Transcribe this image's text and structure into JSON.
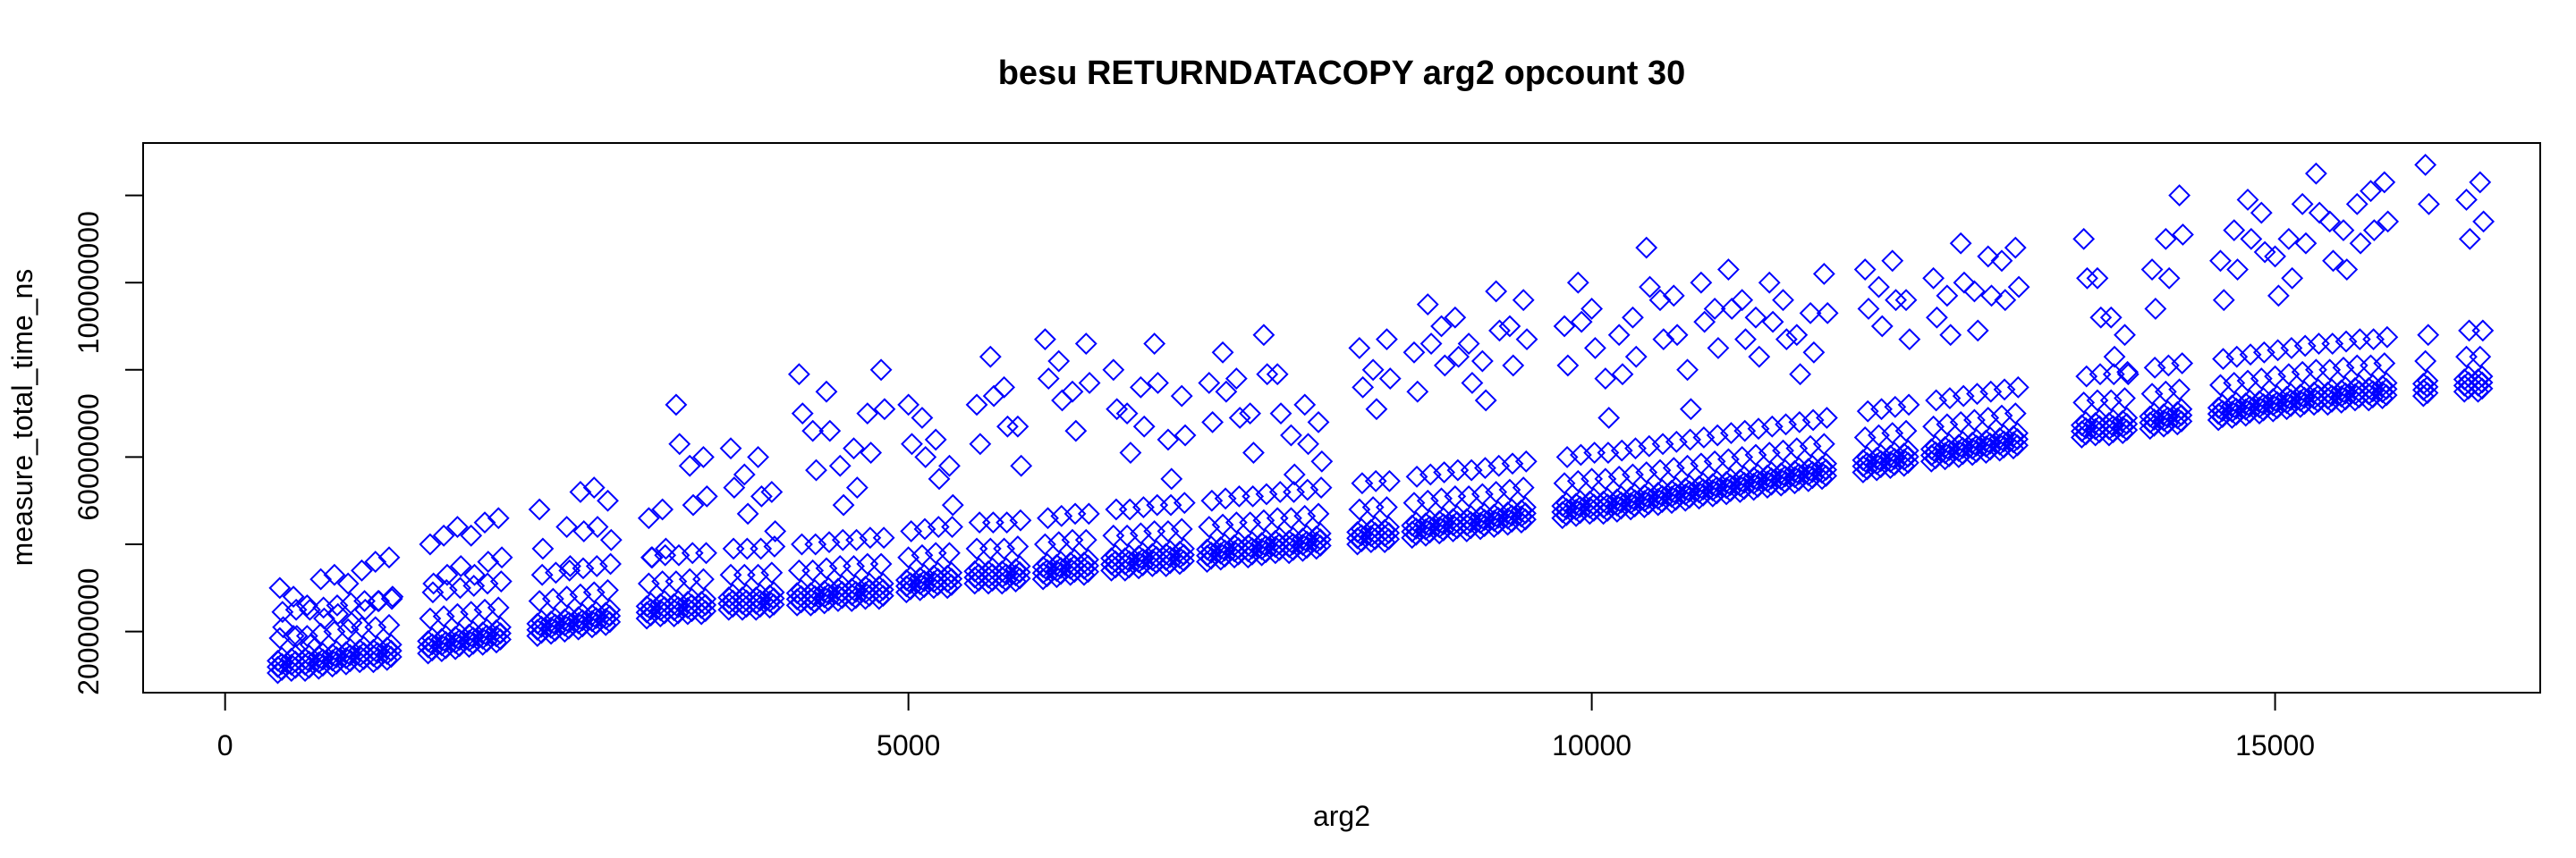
{
  "chart_data": {
    "type": "scatter",
    "title": "besu RETURNDATACOPY arg2 opcount 30",
    "xlabel": "arg2",
    "ylabel": "measure_total_time_ns",
    "xlim": [
      -600,
      16940
    ],
    "ylim": [
      6000000,
      132000000
    ],
    "x_ticks": [
      0,
      5000,
      10000,
      15000
    ],
    "x_tick_labels": [
      "0",
      "5000",
      "10000",
      "15000"
    ],
    "y_ticks": [
      20000000,
      40000000,
      60000000,
      80000000,
      100000000,
      120000000
    ],
    "y_tick_labels": [
      "20000000",
      "",
      "60000000",
      "",
      "100000000",
      ""
    ],
    "grid": false,
    "legend": "none",
    "marker": "diamond-open",
    "marker_color": "#0000ff",
    "series": [
      {
        "base": [
          [
            400,
            10.5
          ],
          [
            500,
            11
          ],
          [
            600,
            11
          ],
          [
            700,
            11.5
          ],
          [
            800,
            12
          ],
          [
            900,
            12.5
          ],
          [
            1000,
            13
          ],
          [
            1100,
            13
          ],
          [
            1200,
            13.5
          ],
          [
            1500,
            15
          ],
          [
            1600,
            15.5
          ],
          [
            1700,
            16
          ],
          [
            1800,
            16.5
          ],
          [
            1900,
            17
          ],
          [
            2000,
            17.5
          ],
          [
            2300,
            19
          ],
          [
            2400,
            19.5
          ],
          [
            2500,
            20
          ],
          [
            2600,
            20.5
          ],
          [
            2700,
            21
          ],
          [
            2800,
            21.5
          ],
          [
            3100,
            23
          ],
          [
            3200,
            23.5
          ],
          [
            3300,
            23.5
          ],
          [
            3400,
            24
          ],
          [
            3500,
            24
          ],
          [
            3700,
            25
          ],
          [
            3800,
            25
          ],
          [
            3900,
            25
          ],
          [
            4000,
            25.5
          ],
          [
            4200,
            26
          ],
          [
            4300,
            26
          ],
          [
            4400,
            26.5
          ],
          [
            4500,
            27
          ],
          [
            4600,
            27
          ],
          [
            4700,
            27.5
          ],
          [
            4800,
            27.5
          ],
          [
            5000,
            29
          ],
          [
            5100,
            29.5
          ],
          [
            5200,
            30
          ],
          [
            5300,
            30
          ],
          [
            5500,
            31
          ],
          [
            5600,
            31
          ],
          [
            5700,
            31
          ],
          [
            5800,
            31.5
          ],
          [
            6000,
            32
          ],
          [
            6100,
            32.5
          ],
          [
            6200,
            33
          ],
          [
            6300,
            33
          ],
          [
            6500,
            34
          ],
          [
            6600,
            34
          ],
          [
            6700,
            34.5
          ],
          [
            6800,
            35
          ],
          [
            6900,
            35
          ],
          [
            7000,
            35.5
          ],
          [
            7200,
            36
          ],
          [
            7300,
            36.5
          ],
          [
            7400,
            37
          ],
          [
            7500,
            37
          ],
          [
            7600,
            37.5
          ],
          [
            7700,
            38
          ],
          [
            7800,
            38
          ],
          [
            7900,
            38.5
          ],
          [
            8000,
            39
          ],
          [
            8300,
            40
          ],
          [
            8400,
            40.5
          ],
          [
            8500,
            40.5
          ],
          [
            8700,
            41.5
          ],
          [
            8800,
            42
          ],
          [
            8900,
            42.5
          ],
          [
            9000,
            43
          ],
          [
            9100,
            43
          ],
          [
            9200,
            43.5
          ],
          [
            9300,
            44
          ],
          [
            9400,
            44.5
          ],
          [
            9500,
            45
          ],
          [
            9800,
            46
          ],
          [
            9900,
            46.5
          ],
          [
            10000,
            47
          ],
          [
            10100,
            47
          ],
          [
            10200,
            47.5
          ],
          [
            10300,
            48
          ],
          [
            10400,
            48.5
          ],
          [
            10500,
            49
          ],
          [
            10600,
            49.5
          ],
          [
            10700,
            50
          ],
          [
            10800,
            50.5
          ],
          [
            10900,
            51
          ],
          [
            11000,
            51.5
          ],
          [
            11100,
            52
          ],
          [
            11200,
            52.5
          ],
          [
            11300,
            53
          ],
          [
            11400,
            53.5
          ],
          [
            11500,
            54
          ],
          [
            11600,
            54.5
          ],
          [
            11700,
            55
          ],
          [
            12000,
            56.5
          ],
          [
            12100,
            57
          ],
          [
            12200,
            57.5
          ],
          [
            12300,
            58
          ],
          [
            12500,
            59
          ],
          [
            12600,
            59.5
          ],
          [
            12700,
            60
          ],
          [
            12800,
            60.5
          ],
          [
            12900,
            61
          ],
          [
            13000,
            61.5
          ],
          [
            13100,
            62
          ],
          [
            13600,
            64.5
          ],
          [
            13700,
            65
          ],
          [
            13800,
            65
          ],
          [
            13900,
            65.5
          ],
          [
            14100,
            66.5
          ],
          [
            14200,
            67
          ],
          [
            14300,
            67.5
          ],
          [
            14600,
            68.5
          ],
          [
            14700,
            69
          ],
          [
            14800,
            69.5
          ],
          [
            14900,
            70
          ],
          [
            15000,
            70.5
          ],
          [
            15100,
            71
          ],
          [
            15200,
            71.5
          ],
          [
            15300,
            72
          ],
          [
            15400,
            72
          ],
          [
            15500,
            72.5
          ],
          [
            15600,
            73
          ],
          [
            15700,
            73
          ],
          [
            15800,
            73.5
          ],
          [
            16100,
            74
          ],
          [
            16400,
            75
          ],
          [
            16500,
            75
          ]
        ],
        "outliers": [
          [
            400,
            30
          ],
          [
            500,
            28
          ],
          [
            600,
            26
          ],
          [
            700,
            32
          ],
          [
            800,
            33
          ],
          [
            900,
            31
          ],
          [
            1000,
            34
          ],
          [
            1100,
            36
          ],
          [
            1200,
            37
          ],
          [
            1500,
            40
          ],
          [
            1600,
            42
          ],
          [
            1700,
            44
          ],
          [
            1800,
            42
          ],
          [
            1900,
            45
          ],
          [
            2000,
            46
          ],
          [
            2300,
            48
          ],
          [
            2500,
            44
          ],
          [
            2600,
            52
          ],
          [
            2700,
            53
          ],
          [
            2800,
            50
          ],
          [
            3100,
            46
          ],
          [
            3200,
            48
          ],
          [
            3300,
            72
          ],
          [
            3400,
            58
          ],
          [
            3500,
            60
          ],
          [
            3700,
            62
          ],
          [
            3800,
            56
          ],
          [
            3900,
            60
          ],
          [
            4000,
            52
          ],
          [
            4200,
            79
          ],
          [
            4300,
            66
          ],
          [
            4400,
            75
          ],
          [
            4500,
            58
          ],
          [
            4600,
            62
          ],
          [
            4700,
            70
          ],
          [
            4800,
            80
          ],
          [
            5000,
            72
          ],
          [
            5100,
            69
          ],
          [
            5200,
            64
          ],
          [
            5300,
            58
          ],
          [
            5500,
            72
          ],
          [
            5600,
            83
          ],
          [
            5700,
            76
          ],
          [
            5800,
            67
          ],
          [
            6000,
            87
          ],
          [
            6100,
            82
          ],
          [
            6200,
            75
          ],
          [
            6300,
            86
          ],
          [
            6500,
            80
          ],
          [
            6600,
            70
          ],
          [
            6700,
            76
          ],
          [
            6800,
            86
          ],
          [
            6900,
            64
          ],
          [
            7000,
            74
          ],
          [
            7200,
            77
          ],
          [
            7300,
            84
          ],
          [
            7400,
            78
          ],
          [
            7500,
            70
          ],
          [
            7600,
            88
          ],
          [
            7700,
            79
          ],
          [
            7800,
            65
          ],
          [
            7900,
            72
          ],
          [
            8000,
            68
          ],
          [
            8300,
            85
          ],
          [
            8400,
            80
          ],
          [
            8500,
            87
          ],
          [
            8700,
            84
          ],
          [
            8800,
            95
          ],
          [
            8900,
            90
          ],
          [
            9000,
            92
          ],
          [
            9100,
            86
          ],
          [
            9200,
            82
          ],
          [
            9300,
            98
          ],
          [
            9400,
            90
          ],
          [
            9500,
            96
          ],
          [
            9800,
            90
          ],
          [
            9900,
            100
          ],
          [
            10000,
            94
          ],
          [
            10100,
            78
          ],
          [
            10200,
            88
          ],
          [
            10300,
            92
          ],
          [
            10400,
            108
          ],
          [
            10500,
            96
          ],
          [
            10600,
            97
          ],
          [
            10700,
            80
          ],
          [
            10800,
            100
          ],
          [
            10900,
            94
          ],
          [
            11000,
            103
          ],
          [
            11100,
            96
          ],
          [
            11200,
            92
          ],
          [
            11300,
            100
          ],
          [
            11400,
            96
          ],
          [
            11500,
            88
          ],
          [
            11600,
            93
          ],
          [
            11700,
            102
          ],
          [
            12000,
            103
          ],
          [
            12100,
            99
          ],
          [
            12200,
            105
          ],
          [
            12300,
            96
          ],
          [
            12500,
            101
          ],
          [
            12600,
            97
          ],
          [
            12700,
            109
          ],
          [
            12800,
            98
          ],
          [
            12900,
            106
          ],
          [
            13000,
            105
          ],
          [
            13100,
            108
          ],
          [
            13600,
            110
          ],
          [
            13700,
            101
          ],
          [
            13800,
            92
          ],
          [
            13900,
            88
          ],
          [
            14100,
            103
          ],
          [
            14200,
            110
          ],
          [
            14300,
            120
          ],
          [
            14600,
            105
          ],
          [
            14700,
            112
          ],
          [
            14800,
            119
          ],
          [
            14900,
            116
          ],
          [
            15000,
            106
          ],
          [
            15100,
            110
          ],
          [
            15200,
            118
          ],
          [
            15300,
            125
          ],
          [
            15400,
            114
          ],
          [
            15500,
            112
          ],
          [
            15600,
            118
          ],
          [
            15700,
            121
          ],
          [
            15800,
            123
          ],
          [
            16100,
            127
          ],
          [
            16400,
            119
          ],
          [
            16500,
            123
          ]
        ]
      }
    ]
  }
}
